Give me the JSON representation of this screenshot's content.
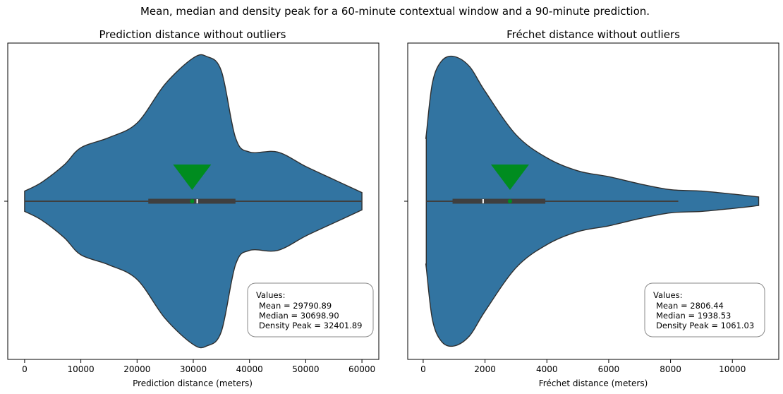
{
  "figure": {
    "suptitle": "Mean, median and density peak for a 60-minute contextual window and a 90-minute prediction."
  },
  "colors": {
    "violin": "#3274a1",
    "edge": "#2f2f2f",
    "marker": "#008c1f",
    "box": "#3f3f3f"
  },
  "chart_data": [
    {
      "type": "violin",
      "title": "Prediction distance without outliers",
      "xlabel": "Prediction distance (meters)",
      "ylabel": "",
      "xlim": [
        -3000,
        63000
      ],
      "xticks": [
        0,
        10000,
        20000,
        30000,
        40000,
        50000,
        60000
      ],
      "xtick_labels": [
        "0",
        "10000",
        "20000",
        "30000",
        "40000",
        "50000",
        "60000"
      ],
      "density_profile": [
        [
          0,
          0.07
        ],
        [
          3000,
          0.13
        ],
        [
          7000,
          0.25
        ],
        [
          10000,
          0.37
        ],
        [
          15000,
          0.44
        ],
        [
          20000,
          0.54
        ],
        [
          25000,
          0.81
        ],
        [
          30000,
          0.99
        ],
        [
          32400,
          1.0
        ],
        [
          35000,
          0.9
        ],
        [
          37500,
          0.44
        ],
        [
          40000,
          0.34
        ],
        [
          45000,
          0.34
        ],
        [
          50000,
          0.24
        ],
        [
          55000,
          0.15
        ],
        [
          60000,
          0.06
        ]
      ],
      "box": {
        "min": 0,
        "q1": 22000,
        "median": 30698.9,
        "q3": 37500,
        "max": 60000
      },
      "mean": 29790.89,
      "median": 30698.9,
      "density_peak": 32401.89,
      "annotation": {
        "heading": "Values:",
        "mean_line": "Mean = 29790.89",
        "median_line": "Median = 30698.90",
        "peak_line": "Density Peak = 32401.89"
      }
    },
    {
      "type": "violin",
      "title": "Fréchet distance without outliers",
      "xlabel": "Fréchet distance (meters)",
      "ylabel": "",
      "xlim": [
        -500,
        11500
      ],
      "xticks": [
        0,
        2000,
        4000,
        6000,
        8000,
        10000
      ],
      "xtick_labels": [
        "0",
        "2000",
        "4000",
        "6000",
        "8000",
        "10000"
      ],
      "density_profile": [
        [
          100,
          0.46
        ],
        [
          100,
          0.46
        ],
        [
          300,
          0.82
        ],
        [
          600,
          0.97
        ],
        [
          1000,
          1.0
        ],
        [
          1500,
          0.93
        ],
        [
          2000,
          0.76
        ],
        [
          3000,
          0.46
        ],
        [
          4000,
          0.3
        ],
        [
          5000,
          0.21
        ],
        [
          6000,
          0.17
        ],
        [
          7000,
          0.12
        ],
        [
          8000,
          0.08
        ],
        [
          9000,
          0.07
        ],
        [
          10000,
          0.05
        ],
        [
          10850,
          0.03
        ]
      ],
      "box": {
        "min": 100,
        "q1": 950,
        "median": 1938.53,
        "q3": 3950,
        "max": 8250
      },
      "mean": 2806.44,
      "median": 1938.53,
      "density_peak": 1061.03,
      "annotation": {
        "heading": "Values:",
        "mean_line": "Mean = 2806.44",
        "median_line": "Median = 1938.53",
        "peak_line": "Density Peak = 1061.03"
      }
    }
  ]
}
